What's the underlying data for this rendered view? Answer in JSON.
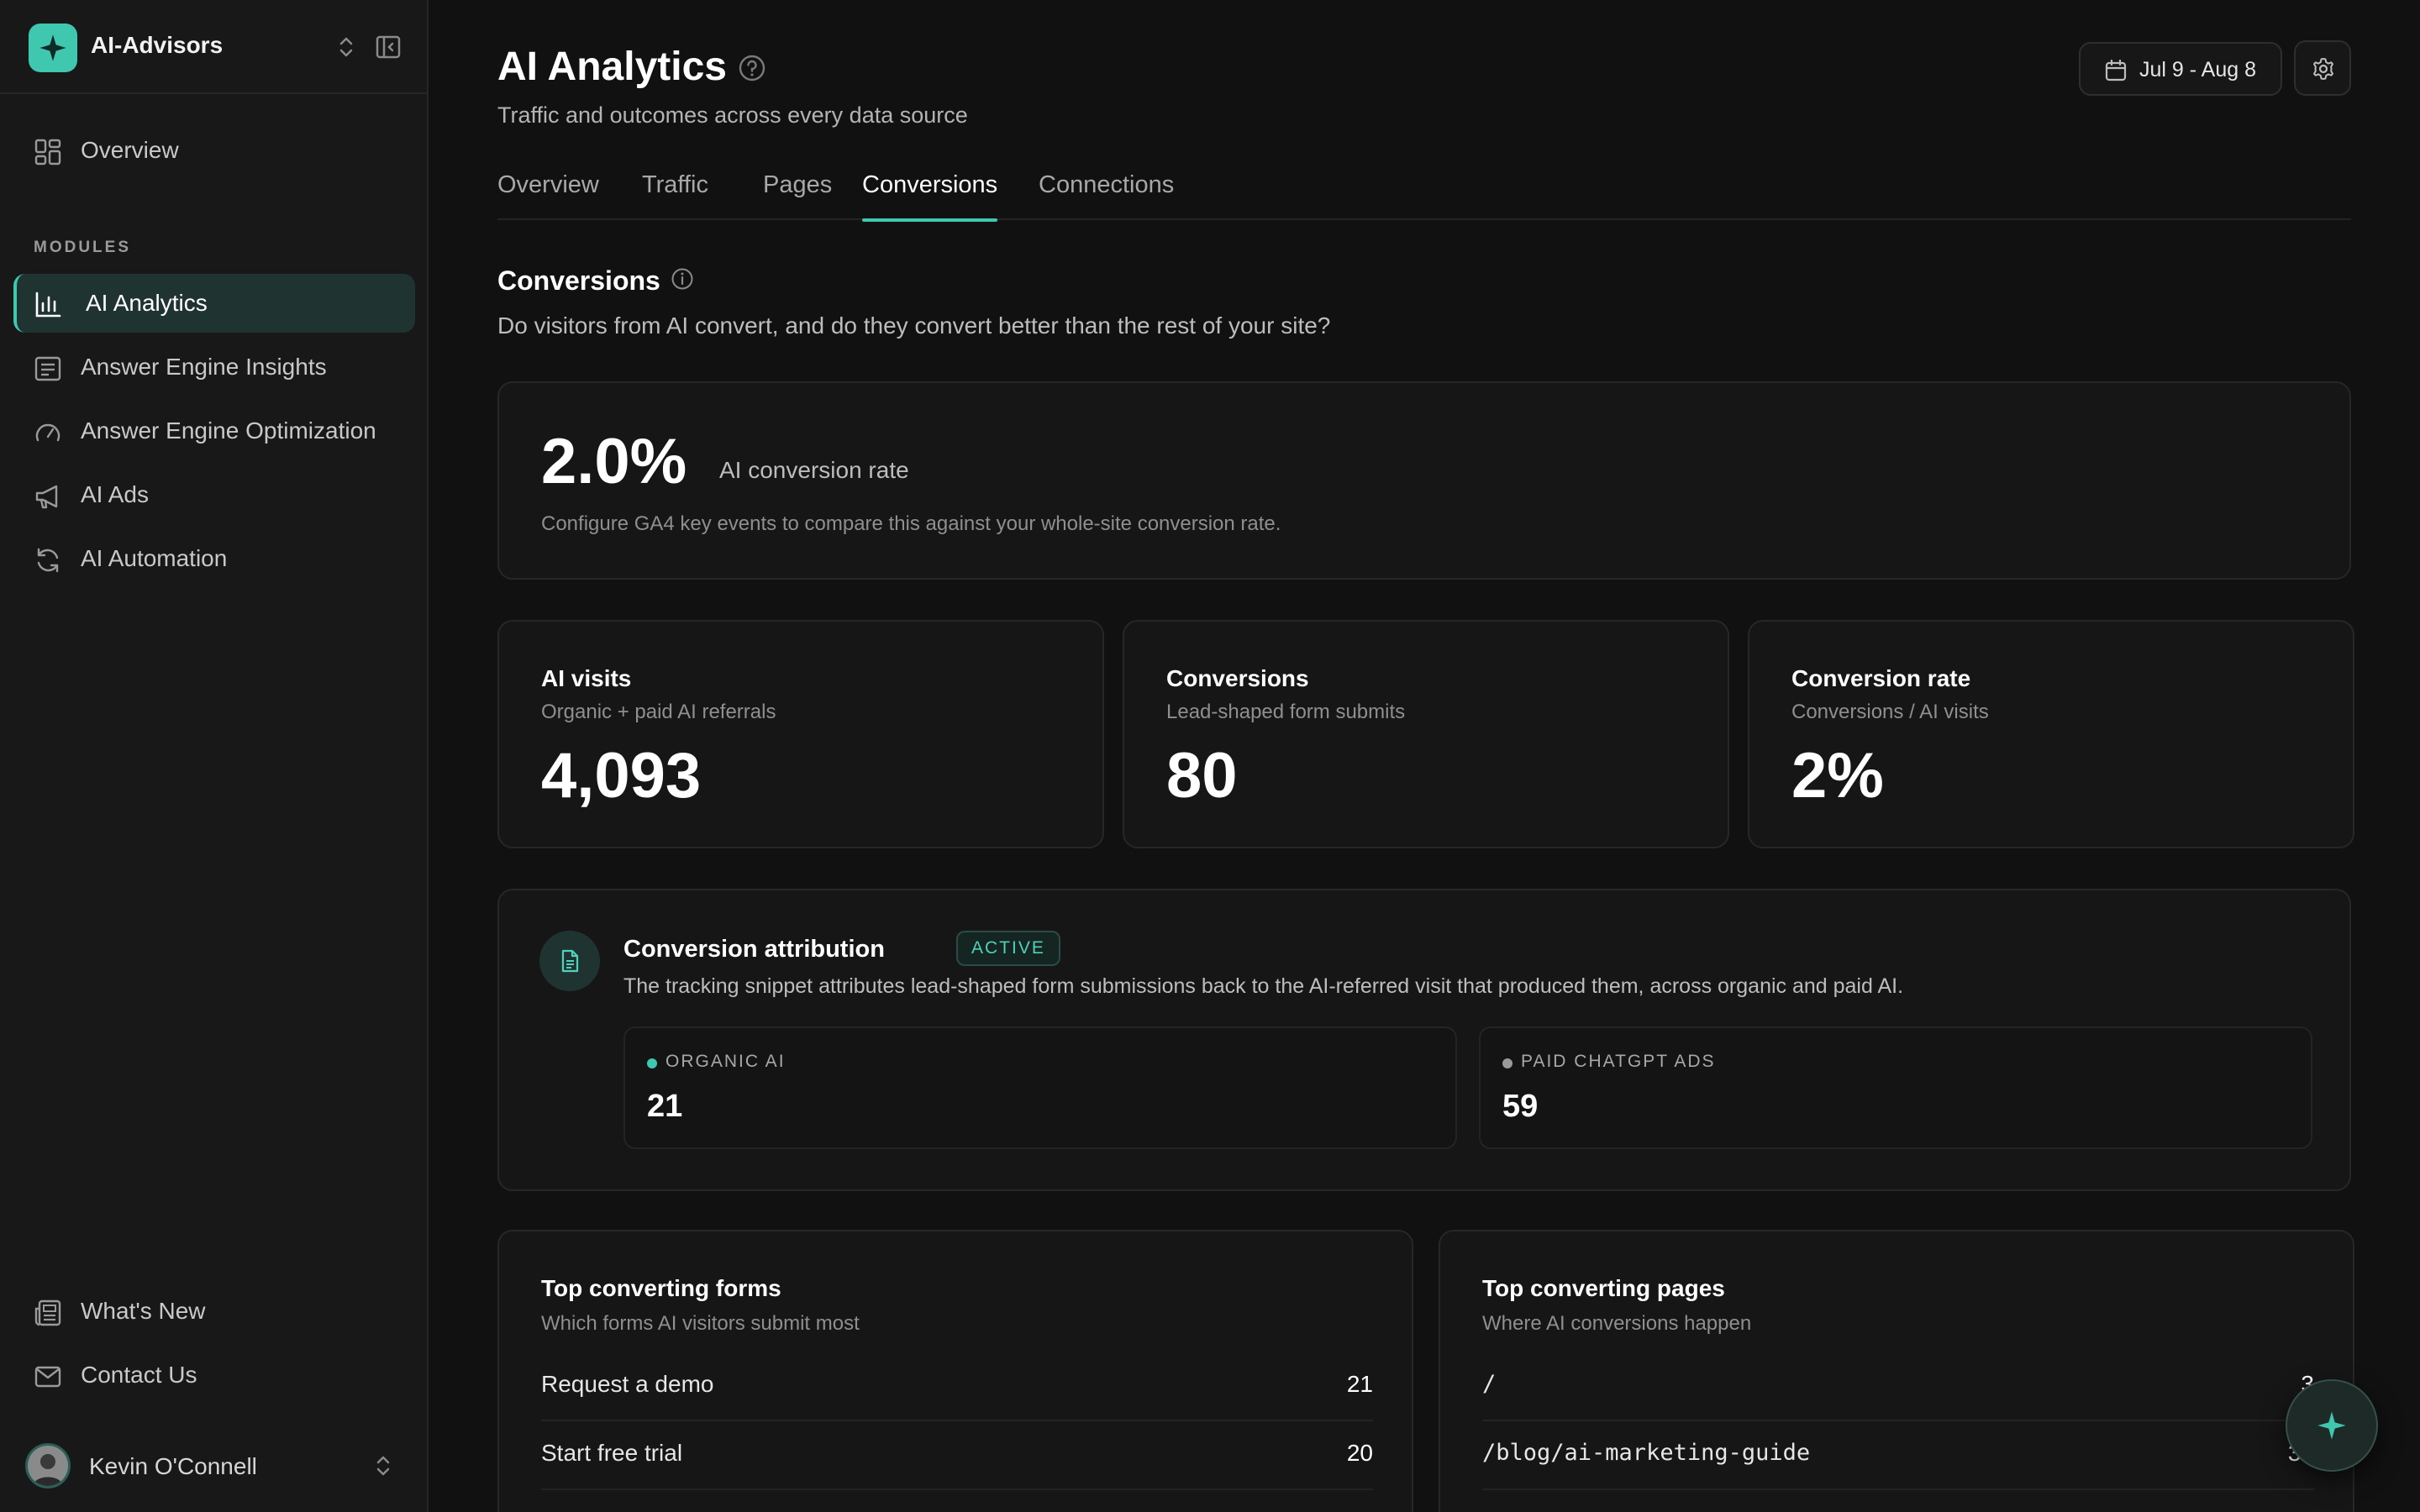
{
  "workspace": {
    "name": "AI-Advisors",
    "brand_color": "#3fc7b0"
  },
  "sidebar": {
    "overview_label": "Overview",
    "modules_heading": "MODULES",
    "modules": [
      {
        "label": "AI Analytics",
        "icon": "bar-chart-icon",
        "active": true
      },
      {
        "label": "Answer Engine Insights",
        "icon": "message-lines-icon"
      },
      {
        "label": "Answer Engine Optimization",
        "icon": "gauge-icon"
      },
      {
        "label": "AI Ads",
        "icon": "megaphone-icon"
      },
      {
        "label": "AI Automation",
        "icon": "refresh-icon"
      }
    ],
    "footer": [
      {
        "label": "What's New",
        "icon": "newspaper-icon"
      },
      {
        "label": "Contact Us",
        "icon": "mail-icon"
      }
    ],
    "user": {
      "name": "Kevin O'Connell"
    }
  },
  "header": {
    "title": "AI Analytics",
    "subtitle": "Traffic and outcomes across every data source",
    "date_range": "Jul 9 - Aug 8"
  },
  "tabs": [
    {
      "label": "Overview"
    },
    {
      "label": "Traffic"
    },
    {
      "label": "Pages"
    },
    {
      "label": "Conversions",
      "active": true
    },
    {
      "label": "Connections"
    }
  ],
  "section": {
    "title": "Conversions",
    "subtitle": "Do visitors from AI convert, and do they convert better than the rest of your site?"
  },
  "rate_card": {
    "value": "2.0%",
    "label": "AI conversion rate",
    "note": "Configure GA4 key events to compare this against your whole-site conversion rate."
  },
  "stats": [
    {
      "title": "AI visits",
      "subtitle": "Organic + paid AI referrals",
      "value": "4,093"
    },
    {
      "title": "Conversions",
      "subtitle": "Lead-shaped form submits",
      "value": "80"
    },
    {
      "title": "Conversion rate",
      "subtitle": "Conversions / AI visits",
      "value": "2%"
    }
  ],
  "attribution": {
    "title": "Conversion attribution",
    "badge": "ACTIVE",
    "description": "The tracking snippet attributes lead-shaped form submissions back to the AI-referred visit that produced them, across organic and paid AI.",
    "sources": [
      {
        "name": "ORGANIC AI",
        "value": "21",
        "color": "#3fc7b0"
      },
      {
        "name": "PAID CHATGPT ADS",
        "value": "59",
        "color": "#9a9a9a"
      }
    ]
  },
  "top_forms": {
    "title": "Top converting forms",
    "subtitle": "Which forms AI visitors submit most",
    "rows": [
      {
        "name": "Request a demo",
        "count": "21"
      },
      {
        "name": "Start free trial",
        "count": "20"
      }
    ]
  },
  "top_pages": {
    "title": "Top converting pages",
    "subtitle": "Where AI conversions happen",
    "rows": [
      {
        "name": "/",
        "count": "3"
      },
      {
        "name": "/blog/ai-marketing-guide",
        "count": "31"
      }
    ]
  }
}
